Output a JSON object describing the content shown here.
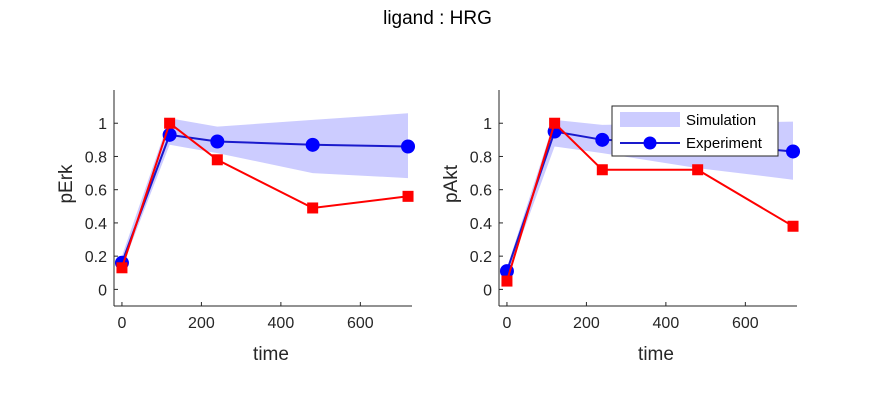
{
  "figure": {
    "title": "ligand : HRG"
  },
  "colors": {
    "simulation_band": "#ccccff",
    "experiment": "#0000ff",
    "experiment_line": "#1a1acc",
    "model_line": "#ff0000",
    "axis": "#262626"
  },
  "chart_data": [
    {
      "type": "line",
      "xlabel": "time",
      "ylabel": "pErk",
      "xlim": [
        -20,
        730
      ],
      "ylim": [
        -0.1,
        1.2
      ],
      "xticks": [
        0,
        200,
        400,
        600
      ],
      "yticks": [
        0,
        0.2,
        0.4,
        0.6,
        0.8,
        1
      ],
      "series": [
        {
          "kind": "band",
          "name": "Simulation",
          "x": [
            0,
            120,
            240,
            480,
            720
          ],
          "lower": [
            0.13,
            0.87,
            0.82,
            0.7,
            0.67
          ],
          "upper": [
            0.2,
            1.03,
            0.98,
            1.02,
            1.06
          ]
        },
        {
          "kind": "line-circle",
          "name": "Experiment",
          "x": [
            0,
            120,
            240,
            480,
            720
          ],
          "values": [
            0.16,
            0.93,
            0.89,
            0.87,
            0.86
          ]
        },
        {
          "kind": "line-square",
          "x": [
            0,
            120,
            240,
            480,
            720
          ],
          "values": [
            0.13,
            1.0,
            0.78,
            0.49,
            0.56
          ]
        }
      ]
    },
    {
      "type": "line",
      "xlabel": "time",
      "ylabel": "pAkt",
      "xlim": [
        -20,
        730
      ],
      "ylim": [
        -0.1,
        1.2
      ],
      "xticks": [
        0,
        200,
        400,
        600
      ],
      "yticks": [
        0,
        0.2,
        0.4,
        0.6,
        0.8,
        1
      ],
      "legend": {
        "placement": "top-right",
        "entries": [
          "Simulation",
          "Experiment"
        ]
      },
      "series": [
        {
          "kind": "band",
          "name": "Simulation",
          "x": [
            0,
            120,
            240,
            480,
            720
          ],
          "lower": [
            0.08,
            0.86,
            0.82,
            0.73,
            0.66
          ],
          "upper": [
            0.13,
            1.02,
            0.99,
            1.0,
            1.01
          ]
        },
        {
          "kind": "line-circle",
          "name": "Experiment",
          "x": [
            0,
            120,
            240,
            480,
            720
          ],
          "values": [
            0.11,
            0.95,
            0.9,
            0.88,
            0.83
          ]
        },
        {
          "kind": "line-square",
          "x": [
            0,
            120,
            240,
            480,
            720
          ],
          "values": [
            0.05,
            1.0,
            0.72,
            0.72,
            0.38
          ]
        }
      ]
    }
  ]
}
